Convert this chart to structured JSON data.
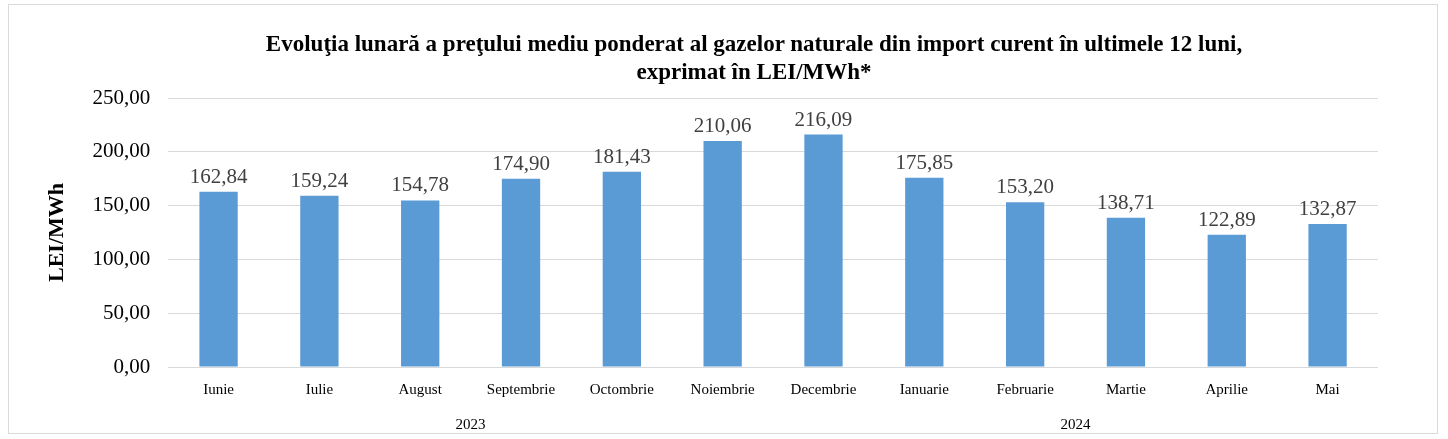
{
  "chart_data": {
    "type": "bar",
    "title": "Evoluţia lunară a preţului mediu ponderat al gazelor naturale din import curent în ultimele 12 luni, exprimat în LEI/MWh*",
    "ylabel": "LEI/MWh",
    "categories": [
      "Iunie",
      "Iulie",
      "August",
      "Septembrie",
      "Octombrie",
      "Noiembrie",
      "Decembrie",
      "Ianuarie",
      "Februarie",
      "Martie",
      "Aprilie",
      "Mai"
    ],
    "values": [
      162.84,
      159.24,
      154.78,
      174.9,
      181.43,
      210.06,
      216.09,
      175.85,
      153.2,
      138.71,
      122.89,
      132.87
    ],
    "value_labels": [
      "162,84",
      "159,24",
      "154,78",
      "174,90",
      "181,43",
      "210,06",
      "216,09",
      "175,85",
      "153,20",
      "138,71",
      "122,89",
      "132,87"
    ],
    "color": "#5b9bd5",
    "ylim": [
      0,
      250
    ],
    "yticks": [
      {
        "value": 0,
        "label": "0,00"
      },
      {
        "value": 50,
        "label": "50,00"
      },
      {
        "value": 100,
        "label": "100,00"
      },
      {
        "value": 150,
        "label": "150,00"
      },
      {
        "value": 200,
        "label": "200,00"
      },
      {
        "value": 250,
        "label": "250,00"
      }
    ],
    "grid": "y",
    "annotations": [
      "2023",
      "2024"
    ]
  }
}
